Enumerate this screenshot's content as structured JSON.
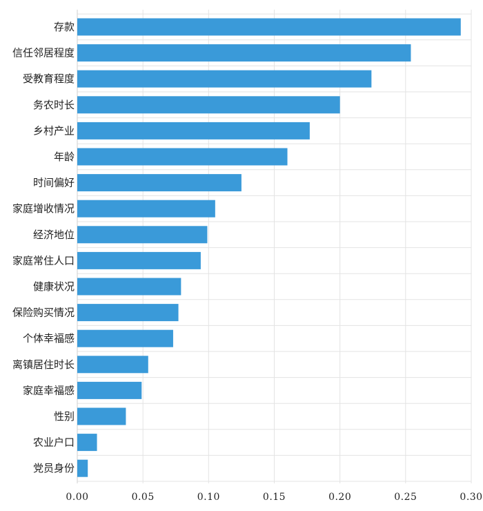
{
  "chart_data": {
    "type": "bar",
    "orientation": "horizontal",
    "categories": [
      "存款",
      "信任邻居程度",
      "受教育程度",
      "务农时长",
      "乡村产业",
      "年龄",
      "时间偏好",
      "家庭增收情况",
      "经济地位",
      "家庭常住人口",
      "健康状况",
      "保险购买情况",
      "个体幸福感",
      "离镇居住时长",
      "家庭幸福感",
      "性别",
      "农业户口",
      "党员身份"
    ],
    "values": [
      0.292,
      0.254,
      0.224,
      0.2,
      0.177,
      0.16,
      0.125,
      0.105,
      0.099,
      0.094,
      0.079,
      0.077,
      0.073,
      0.054,
      0.049,
      0.037,
      0.015,
      0.008
    ],
    "xlim": [
      0,
      0.3
    ],
    "xticks": [
      "0.00",
      "0.05",
      "0.10",
      "0.15",
      "0.20",
      "0.25",
      "0.30"
    ],
    "grid": true,
    "bar_color": "#3a9ad9",
    "title": "",
    "xlabel": "",
    "ylabel": ""
  }
}
